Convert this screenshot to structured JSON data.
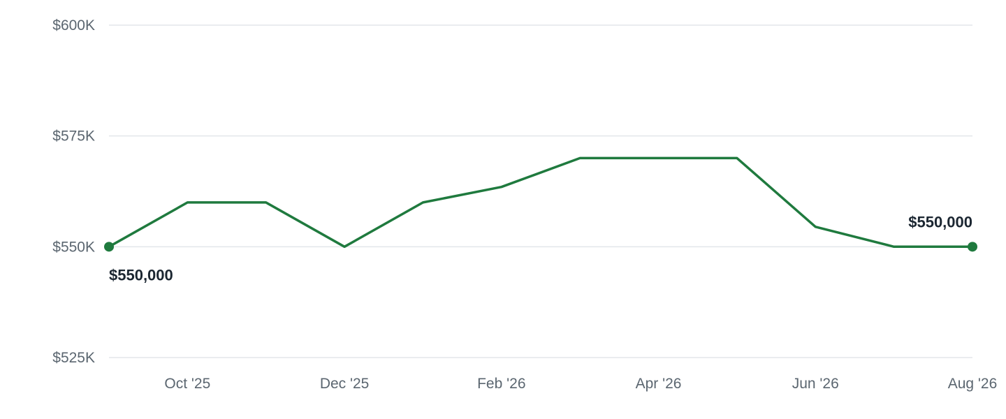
{
  "chart_data": {
    "type": "line",
    "title": "",
    "xlabel": "",
    "ylabel": "",
    "ylim": [
      525000,
      600000
    ],
    "grid": true,
    "line_color": "#1f7a3e",
    "y_ticks": [
      {
        "value": 600000,
        "label": "$600K"
      },
      {
        "value": 575000,
        "label": "$575K"
      },
      {
        "value": 550000,
        "label": "$550K"
      },
      {
        "value": 525000,
        "label": "$525K"
      }
    ],
    "x_ticks": [
      {
        "date": "2025-10",
        "label": "Oct '25"
      },
      {
        "date": "2025-12",
        "label": "Dec '25"
      },
      {
        "date": "2026-02",
        "label": "Feb '26"
      },
      {
        "date": "2026-04",
        "label": "Apr '26"
      },
      {
        "date": "2026-06",
        "label": "Jun '26"
      },
      {
        "date": "2026-08",
        "label": "Aug '26"
      }
    ],
    "series": [
      {
        "points": [
          {
            "x": "2025-09",
            "y": 550000
          },
          {
            "x": "2025-10",
            "y": 560000
          },
          {
            "x": "2025-11",
            "y": 560000
          },
          {
            "x": "2025-12",
            "y": 550000
          },
          {
            "x": "2026-01",
            "y": 560000
          },
          {
            "x": "2026-02",
            "y": 563500
          },
          {
            "x": "2026-03",
            "y": 570000
          },
          {
            "x": "2026-04",
            "y": 570000
          },
          {
            "x": "2026-05",
            "y": 570000
          },
          {
            "x": "2026-06",
            "y": 554500
          },
          {
            "x": "2026-07",
            "y": 550000
          },
          {
            "x": "2026-08",
            "y": 550000
          }
        ]
      }
    ],
    "annotations": [
      {
        "x": "2025-09",
        "label": "$550,000",
        "placement": "below"
      },
      {
        "x": "2026-08",
        "label": "$550,000",
        "placement": "above"
      }
    ]
  }
}
